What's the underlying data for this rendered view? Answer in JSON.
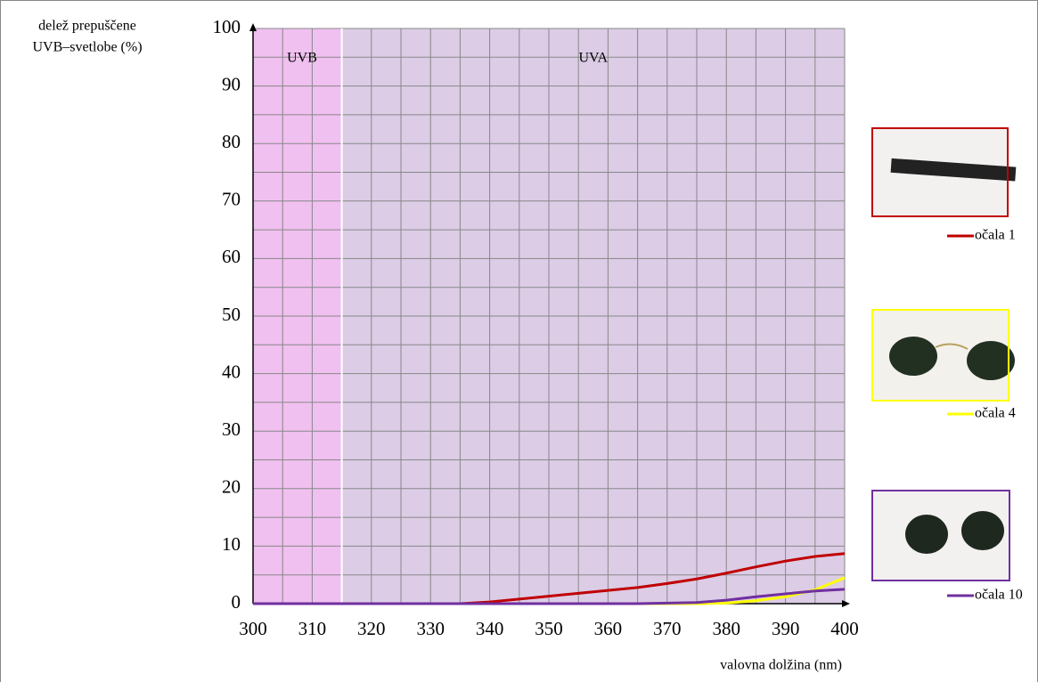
{
  "chart_data": {
    "type": "line",
    "ylabel": [
      "delež prepuščene",
      "UVB–svetlobe  (%)"
    ],
    "xlabel": "valovna dolžina (nm)",
    "x": [
      300,
      305,
      310,
      315,
      320,
      325,
      330,
      335,
      340,
      345,
      350,
      355,
      360,
      365,
      370,
      375,
      380,
      385,
      390,
      395,
      400
    ],
    "series": [
      {
        "name": "očala 1",
        "color": "#c00000",
        "values": [
          0,
          0,
          0,
          0,
          0,
          0,
          0,
          0,
          0.3,
          0.8,
          1.3,
          1.8,
          2.3,
          2.8,
          3.5,
          4.3,
          5.3,
          6.4,
          7.4,
          8.2,
          8.7
        ]
      },
      {
        "name": "očala 4",
        "color": "#ffff00",
        "values": [
          0,
          0,
          0,
          0,
          0,
          0,
          0,
          0,
          0,
          0,
          0,
          0,
          0,
          0,
          0,
          0,
          0.1,
          0.5,
          1.2,
          2.4,
          4.5
        ]
      },
      {
        "name": "očala 10",
        "color": "#7030a0",
        "values": [
          0,
          0,
          0,
          0,
          0,
          0,
          0,
          0,
          0,
          0,
          0,
          0,
          0,
          0,
          0.1,
          0.2,
          0.6,
          1.2,
          1.7,
          2.2,
          2.5
        ]
      }
    ],
    "regions": [
      {
        "name": "UVB",
        "range": [
          300,
          315
        ],
        "color": "#f0c0f0"
      },
      {
        "name": "UVA",
        "range": [
          315,
          400
        ],
        "color": "#dccce6"
      }
    ],
    "xlim": [
      300,
      400
    ],
    "xticks": [
      300,
      310,
      320,
      330,
      340,
      350,
      360,
      370,
      380,
      390,
      400
    ],
    "ylim": [
      0,
      100
    ],
    "yticks": [
      0,
      10,
      20,
      30,
      40,
      50,
      60,
      70,
      80,
      90,
      100
    ],
    "grid": true
  }
}
